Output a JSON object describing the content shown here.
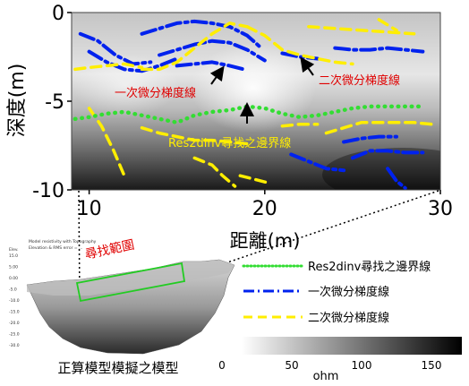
{
  "chart_data": [
    {
      "type": "line",
      "title": "",
      "xlabel": "距離(m)",
      "ylabel": "深度(m)",
      "xlim": [
        9,
        30
      ],
      "ylim": [
        -10,
        0
      ],
      "x_ticks": [
        "10",
        "20",
        "30"
      ],
      "y_ticks": [
        "0",
        "-5",
        "-10"
      ],
      "background": "grayscale resistivity map",
      "grid": false,
      "series": [
        {
          "name": "Res2dinv尋找之邊界線",
          "style": "dotted",
          "color": "#33dd33",
          "x": [
            9.2,
            10,
            11,
            12,
            13,
            14,
            15,
            16,
            17,
            18,
            19,
            20,
            21,
            22,
            23,
            24,
            25,
            26,
            27,
            28,
            29
          ],
          "y": [
            -6.0,
            -5.9,
            -5.7,
            -5.6,
            -5.8,
            -6.0,
            -6.2,
            -5.8,
            -5.6,
            -5.5,
            -5.3,
            -5.4,
            -5.7,
            -5.9,
            -5.8,
            -5.6,
            -5.4,
            -5.3,
            -5.3,
            -5.3,
            -5.3
          ]
        },
        {
          "name": "一次微分梯度線",
          "style": "dash-dot",
          "color": "#0022ee",
          "segments": [
            {
              "x": [
                9.5,
                10.5,
                11.5,
                12.5,
                13.5
              ],
              "y": [
                -1.2,
                -1.6,
                -2.4,
                -2.9,
                -2.8
              ]
            },
            {
              "x": [
                10,
                11,
                12,
                13,
                14,
                15
              ],
              "y": [
                -2.2,
                -2.8,
                -3.2,
                -3.3,
                -3.0,
                -2.6
              ]
            },
            {
              "x": [
                13,
                14,
                15,
                16,
                17,
                18,
                19,
                19.8
              ],
              "y": [
                -1.2,
                -0.9,
                -0.6,
                -0.5,
                -0.6,
                -0.8,
                -1.3,
                -2.0
              ]
            },
            {
              "x": [
                14,
                15,
                16,
                17,
                18,
                19,
                20
              ],
              "y": [
                -2.4,
                -2.1,
                -1.8,
                -1.6,
                -1.7,
                -2.1,
                -2.7
              ]
            },
            {
              "x": [
                15,
                16,
                17,
                18,
                18.8
              ],
              "y": [
                -3.0,
                -2.9,
                -2.8,
                -3.0,
                -3.2
              ]
            },
            {
              "x": [
                21,
                22,
                23
              ],
              "y": [
                -2.3,
                -2.5,
                -2.6
              ]
            },
            {
              "x": [
                24,
                25,
                26,
                27,
                28,
                29
              ],
              "y": [
                -2.0,
                -2.1,
                -2.1,
                -2.0,
                -2.1,
                -2.2
              ]
            },
            {
              "x": [
                24.5,
                25.5,
                26.5,
                27.5
              ],
              "y": [
                -7.3,
                -7.1,
                -7.0,
                -7.0
              ]
            },
            {
              "x": [
                21.5,
                22.5,
                23.5,
                24.5
              ],
              "y": [
                -8.0,
                -8.4,
                -8.8,
                -8.9
              ]
            },
            {
              "x": [
                25,
                26,
                27,
                28,
                29
              ],
              "y": [
                -8.2,
                -7.8,
                -7.8,
                -7.9,
                -7.9
              ]
            },
            {
              "x": [
                27,
                27.5,
                28
              ],
              "y": [
                -8.8,
                -9.5,
                -9.9
              ]
            }
          ]
        },
        {
          "name": "二次微分梯度線",
          "style": "dashed",
          "color": "#ffee00",
          "segments": [
            {
              "x": [
                9.2,
                10,
                11,
                12,
                13
              ],
              "y": [
                -3.2,
                -3.1,
                -3.0,
                -2.9,
                -3.1
              ]
            },
            {
              "x": [
                13,
                14,
                15,
                16,
                17,
                18,
                19
              ],
              "y": [
                -3.2,
                -3.2,
                -2.8,
                -2.0,
                -1.2,
                -0.6,
                -0.8
              ]
            },
            {
              "x": [
                19,
                20,
                21,
                22,
                23,
                24,
                25
              ],
              "y": [
                -0.8,
                -1.3,
                -2.1,
                -2.4,
                -2.6,
                -2.8,
                -2.9
              ]
            },
            {
              "x": [
                22.5,
                24,
                25.5,
                27,
                28.5
              ],
              "y": [
                -0.8,
                -0.9,
                -1.0,
                -1.1,
                -1.2
              ]
            },
            {
              "x": [
                26.5,
                27.5
              ],
              "y": [
                -0.4,
                -1.0
              ]
            },
            {
              "x": [
                10,
                10.7,
                11.4,
                12
              ],
              "y": [
                -5.4,
                -6.4,
                -7.8,
                -9.2
              ]
            },
            {
              "x": [
                13,
                14,
                15,
                16,
                17,
                18,
                19
              ],
              "y": [
                -6.5,
                -6.8,
                -7.0,
                -7.2,
                -7.2,
                -7.3,
                -7.4
              ]
            },
            {
              "x": [
                16,
                17,
                17.6,
                18.3
              ],
              "y": [
                -8.2,
                -8.6,
                -9.2,
                -9.8
              ]
            },
            {
              "x": [
                18.6,
                19.4,
                20.2
              ],
              "y": [
                -9.2,
                -9.4,
                -9.6
              ]
            },
            {
              "x": [
                21,
                22,
                23
              ],
              "y": [
                -6.4,
                -6.3,
                -6.3
              ]
            },
            {
              "x": [
                23.5,
                24.5,
                25.5,
                26.5,
                27.5,
                28.5,
                29.5
              ],
              "y": [
                -6.8,
                -6.5,
                -6.2,
                -6.2,
                -6.2,
                -6.2,
                -6.3
              ]
            }
          ]
        }
      ],
      "annotations": [
        "一次微分梯度線",
        "二次微分梯度線",
        "Res2dinv尋找之邊界線"
      ]
    },
    {
      "type": "heatmap",
      "title": "",
      "colorbar": {
        "label": "ohm",
        "ticks": [
          "0",
          "50",
          "100",
          "150"
        ],
        "range": [
          0,
          150
        ],
        "colormap": "white-to-black"
      }
    }
  ],
  "inset": {
    "header_lines": [
      "Model resistivity with Topography",
      "Elevation & RMS error = ..."
    ],
    "axis_unit": "Elev.",
    "axis_ticks": [
      "15.0",
      "5.00",
      "0.00",
      "-5.0",
      "-10.0",
      "-15.0",
      "-20.0",
      "-25.0",
      "-30.0"
    ],
    "search_label": "尋找範圍",
    "caption": "正算模型模擬之模型"
  },
  "legend": [
    {
      "label": "Res2dinv尋找之邊界線",
      "color": "#33dd33",
      "style": "dotted"
    },
    {
      "label": "一次微分梯度線",
      "color": "#0022ee",
      "style": "dash-dot"
    },
    {
      "label": "二次微分梯度線",
      "color": "#ffee00",
      "style": "dashed"
    }
  ]
}
